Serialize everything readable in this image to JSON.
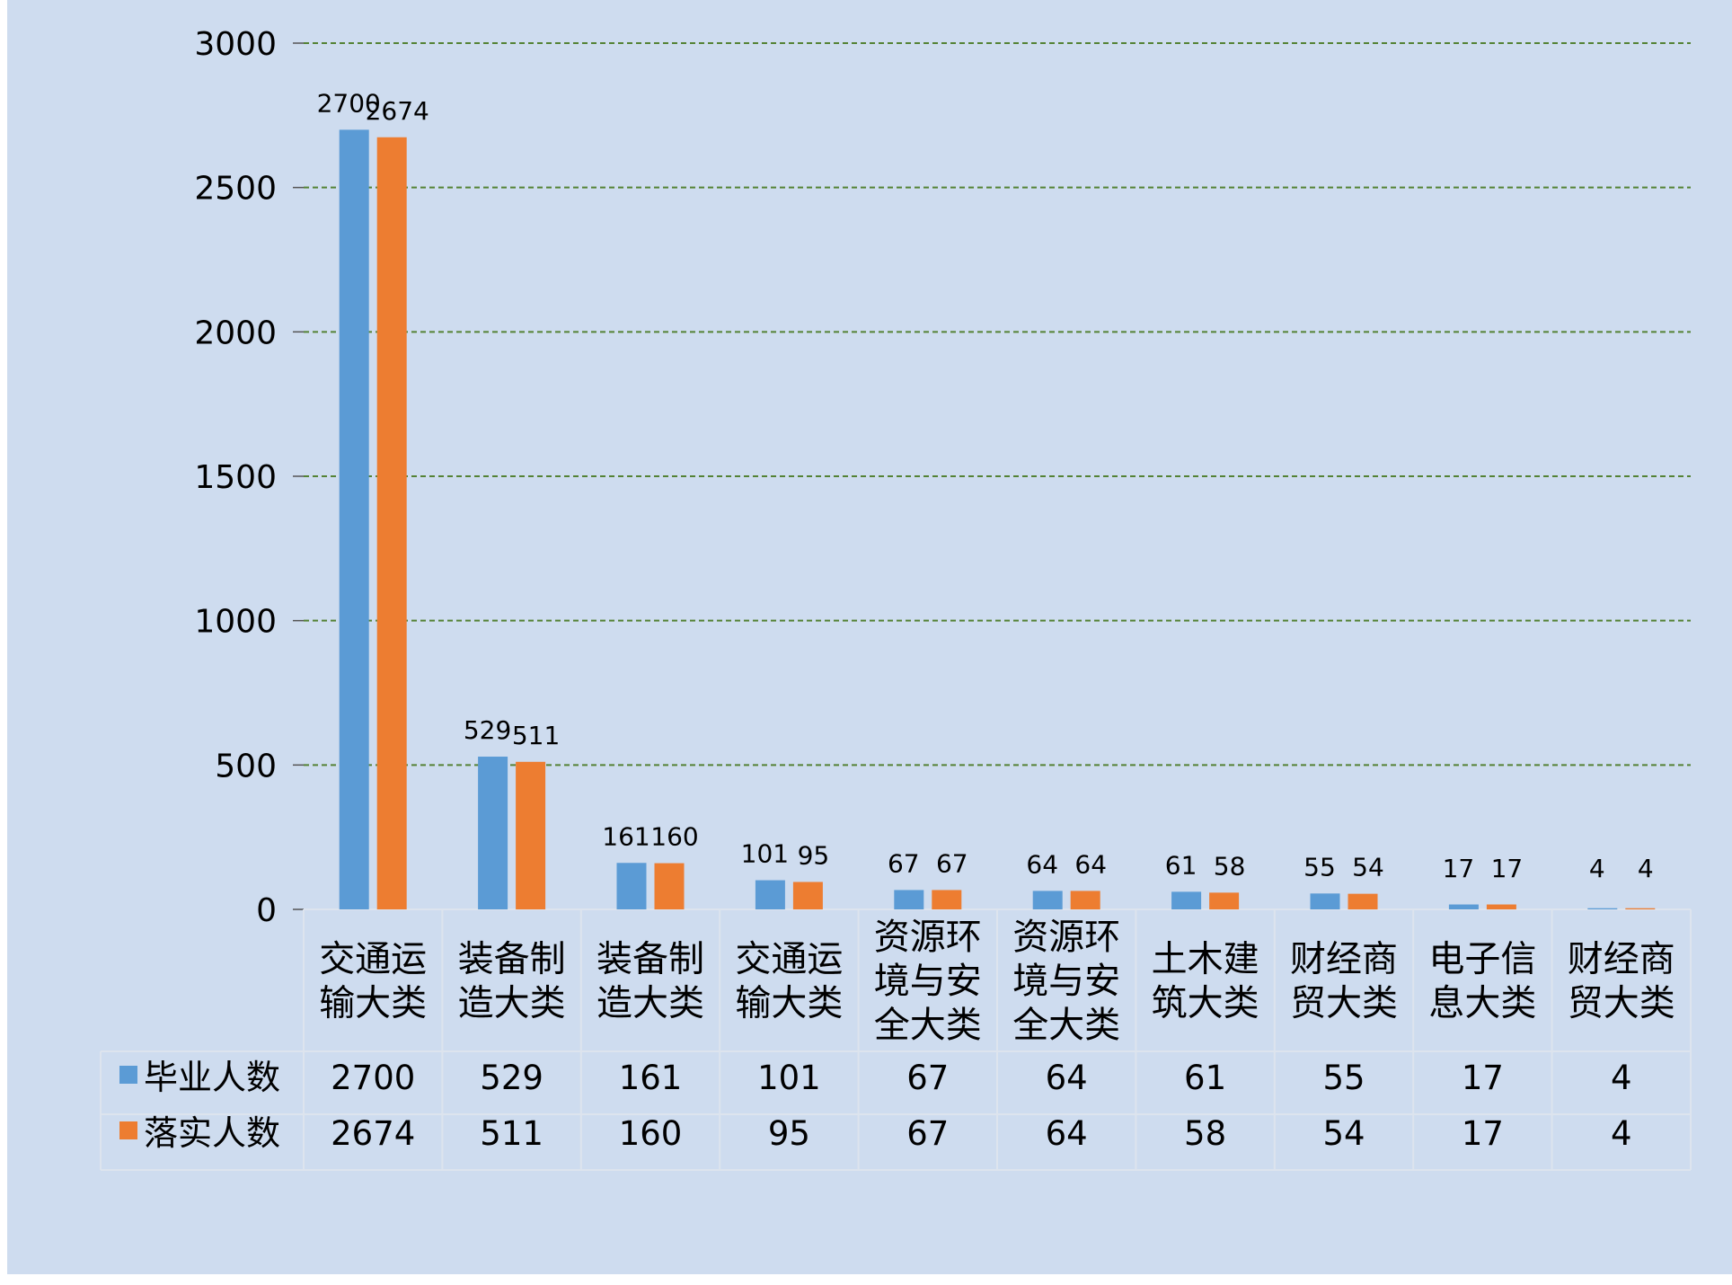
{
  "chart_data": {
    "type": "bar",
    "categories": [
      [
        "交通运",
        "输大类"
      ],
      [
        "装备制",
        "造大类"
      ],
      [
        "装备制",
        "造大类"
      ],
      [
        "交通运",
        "输大类"
      ],
      [
        "资源环",
        "境与安",
        "全大类"
      ],
      [
        "资源环",
        "境与安",
        "全大类"
      ],
      [
        "土木建",
        "筑大类"
      ],
      [
        "财经商",
        "贸大类"
      ],
      [
        "电子信",
        "息大类"
      ],
      [
        "财经商",
        "贸大类"
      ]
    ],
    "series": [
      {
        "name": "毕业人数",
        "color": "#5B9BD5",
        "values": [
          2700,
          529,
          161,
          101,
          67,
          64,
          61,
          55,
          17,
          4
        ]
      },
      {
        "name": "落实人数",
        "color": "#ED7D31",
        "values": [
          2674,
          511,
          160,
          95,
          67,
          64,
          58,
          54,
          17,
          4
        ]
      }
    ],
    "y_ticks": [
      "0",
      "500",
      "1000",
      "1500",
      "2000",
      "2500",
      "3000"
    ],
    "ylim": [
      0,
      3000
    ],
    "grid": true,
    "grid_color": "#548235",
    "background_color": "#CEDCEF",
    "data_table": true,
    "legend_placement": "data-table"
  }
}
